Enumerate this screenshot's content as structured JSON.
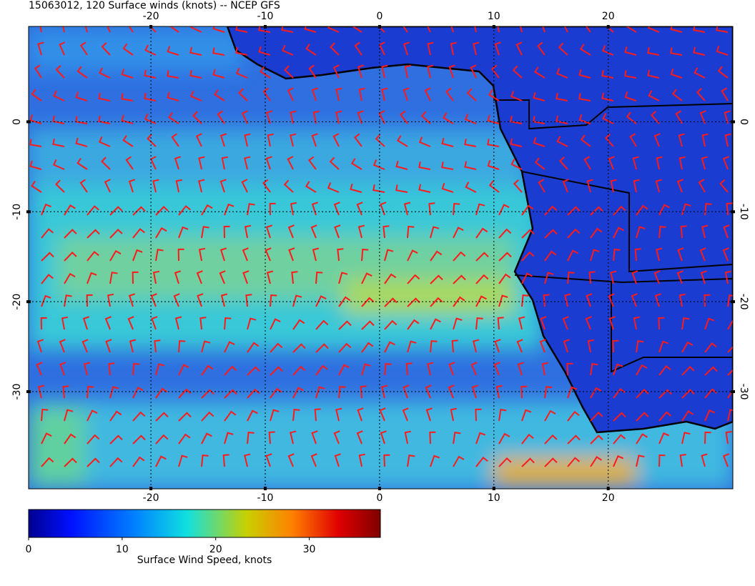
{
  "title": "15063012, 120 Surface winds (knots) -- NCEP GFS",
  "map": {
    "lonlim": [
      -30.7,
      30.9
    ],
    "latlim": [
      -40.8,
      10.6
    ],
    "lon_ticks": [
      -20,
      -10,
      0,
      10,
      20
    ],
    "lat_ticks": [
      0,
      -10,
      -20,
      -30
    ]
  },
  "colorbar": {
    "lim": [
      0,
      37.6
    ],
    "ticks": [
      0,
      10,
      20,
      30
    ],
    "label": "Surface Wind Speed, knots"
  }
}
